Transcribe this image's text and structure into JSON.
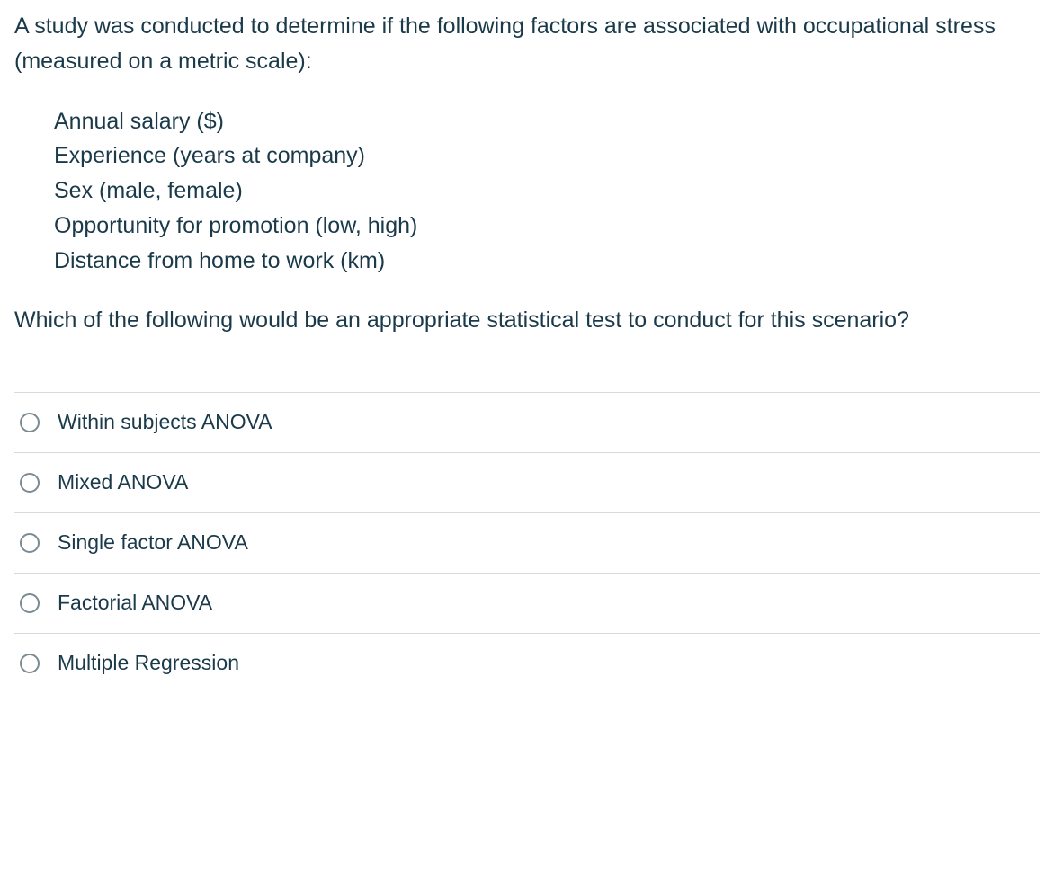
{
  "question": {
    "stem": "A study was conducted to determine if the following factors are associated with occupational stress (measured on a metric scale):",
    "factors": [
      "Annual salary ($)",
      "Experience (years at company)",
      "Sex (male, female)",
      "Opportunity for promotion (low, high)",
      "Distance from home to work (km)"
    ],
    "tail": "Which of the following would be an appropriate statistical test to conduct for this scenario?"
  },
  "options": [
    {
      "label": "Within subjects ANOVA"
    },
    {
      "label": "Mixed ANOVA"
    },
    {
      "label": "Single factor ANOVA"
    },
    {
      "label": "Factorial ANOVA"
    },
    {
      "label": "Multiple Regression"
    }
  ],
  "colors": {
    "text": "#1a3a4a",
    "border": "#d9d9d9",
    "radio_border": "#7b8a93",
    "background": "#ffffff"
  }
}
